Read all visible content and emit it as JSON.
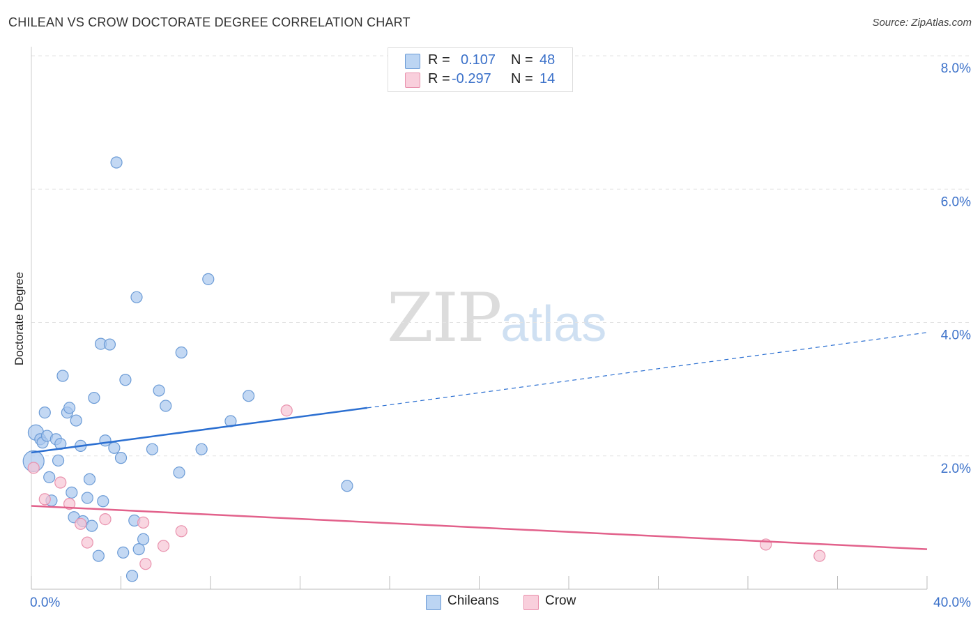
{
  "title": "CHILEAN VS CROW DOCTORATE DEGREE CORRELATION CHART",
  "source": "Source: ZipAtlas.com",
  "watermark": {
    "part1": "ZIP",
    "part2": "atlas"
  },
  "legend": {
    "rows": [
      {
        "r_label": "R =",
        "r_value": "0.107",
        "n_label": "N =",
        "n_value": "48",
        "color": "#a9c8ee"
      },
      {
        "r_label": "R =",
        "r_value": "-0.297",
        "n_label": "N =",
        "n_value": "14",
        "color": "#f4b6c9"
      }
    ]
  },
  "bottom_legend": {
    "series1": "Chileans",
    "series2": "Crow"
  },
  "colors": {
    "blue_fill": "#a9c8ee",
    "blue_stroke": "#6b9bd6",
    "blue_line": "#2b6fd1",
    "pink_fill": "#f7c4d4",
    "pink_stroke": "#e991ad",
    "pink_line": "#e2618b",
    "axis_label": "#3a70c9",
    "grid": "#e3e3e3"
  },
  "chart_data": {
    "type": "scatter",
    "title": "CHILEAN VS CROW DOCTORATE DEGREE CORRELATION CHART",
    "xlabel": "",
    "ylabel": "Doctorate Degree",
    "xlim": [
      0,
      40
    ],
    "ylim": [
      0,
      8
    ],
    "x_tick_labels": [
      {
        "value": 0,
        "label": "0.0%"
      },
      {
        "value": 40,
        "label": "40.0%"
      }
    ],
    "y_tick_labels": [
      {
        "value": 2,
        "label": "2.0%"
      },
      {
        "value": 4,
        "label": "4.0%"
      },
      {
        "value": 6,
        "label": "6.0%"
      },
      {
        "value": 8,
        "label": "8.0%"
      }
    ],
    "series": [
      {
        "name": "Chileans",
        "r": 0.107,
        "n": 48,
        "points": [
          [
            0.2,
            2.35
          ],
          [
            0.1,
            1.92
          ],
          [
            0.4,
            2.25
          ],
          [
            0.5,
            2.2
          ],
          [
            0.6,
            2.65
          ],
          [
            0.7,
            2.3
          ],
          [
            0.8,
            1.68
          ],
          [
            0.9,
            1.33
          ],
          [
            1.1,
            2.25
          ],
          [
            1.2,
            1.93
          ],
          [
            1.3,
            2.18
          ],
          [
            1.4,
            3.2
          ],
          [
            1.6,
            2.65
          ],
          [
            1.7,
            2.72
          ],
          [
            1.8,
            1.45
          ],
          [
            1.9,
            1.08
          ],
          [
            2.0,
            2.53
          ],
          [
            2.2,
            2.15
          ],
          [
            2.3,
            1.02
          ],
          [
            2.5,
            1.37
          ],
          [
            2.6,
            1.65
          ],
          [
            2.7,
            0.95
          ],
          [
            2.8,
            2.87
          ],
          [
            3.0,
            0.5
          ],
          [
            3.1,
            3.68
          ],
          [
            3.2,
            1.32
          ],
          [
            3.3,
            2.23
          ],
          [
            3.5,
            3.67
          ],
          [
            3.7,
            2.12
          ],
          [
            3.8,
            6.4
          ],
          [
            4.0,
            1.97
          ],
          [
            4.1,
            0.55
          ],
          [
            4.2,
            3.14
          ],
          [
            4.5,
            0.2
          ],
          [
            4.6,
            1.03
          ],
          [
            4.7,
            4.38
          ],
          [
            4.8,
            0.6
          ],
          [
            5.0,
            0.75
          ],
          [
            5.4,
            2.1
          ],
          [
            5.7,
            2.98
          ],
          [
            6.0,
            2.75
          ],
          [
            6.6,
            1.75
          ],
          [
            6.7,
            3.55
          ],
          [
            7.6,
            2.1
          ],
          [
            7.9,
            4.65
          ],
          [
            8.9,
            2.52
          ],
          [
            9.7,
            2.9
          ],
          [
            14.1,
            1.55
          ]
        ]
      },
      {
        "name": "Crow",
        "r": -0.297,
        "n": 14,
        "points": [
          [
            0.1,
            1.82
          ],
          [
            0.6,
            1.35
          ],
          [
            1.3,
            1.6
          ],
          [
            1.7,
            1.28
          ],
          [
            2.2,
            0.98
          ],
          [
            2.5,
            0.7
          ],
          [
            3.3,
            1.05
          ],
          [
            5.0,
            1.0
          ],
          [
            5.1,
            0.38
          ],
          [
            5.9,
            0.65
          ],
          [
            6.7,
            0.87
          ],
          [
            11.4,
            2.68
          ],
          [
            32.8,
            0.67
          ],
          [
            35.2,
            0.5
          ]
        ]
      }
    ],
    "trendlines": [
      {
        "series": "Chileans",
        "solid": [
          [
            0,
            2.05
          ],
          [
            15,
            2.72
          ]
        ],
        "dashed": [
          [
            15,
            2.72
          ],
          [
            40,
            3.85
          ]
        ]
      },
      {
        "series": "Crow",
        "solid": [
          [
            0,
            1.25
          ],
          [
            40,
            0.6
          ]
        ]
      }
    ],
    "grid": true
  }
}
